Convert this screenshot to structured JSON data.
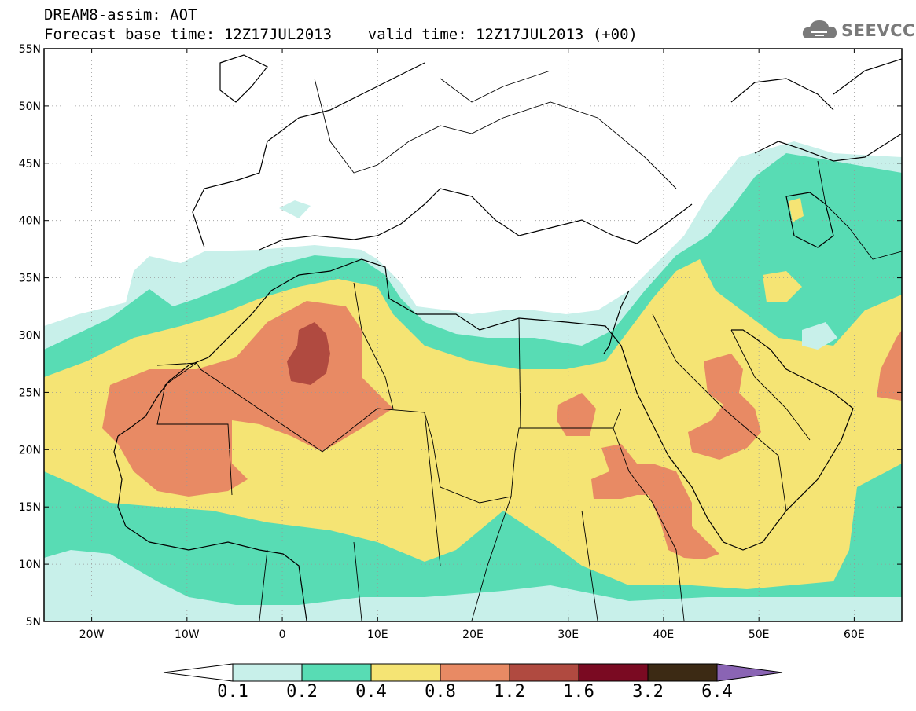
{
  "header": {
    "title_line1": "DREAM8-assim: AOT",
    "title_line2": "Forecast base time: 12Z17JUL2013    valid time: 12Z17JUL2013 (+00)",
    "logo_text": "SEEVCCC"
  },
  "map": {
    "lon_range": [
      -25,
      65
    ],
    "lat_range": [
      5,
      55
    ],
    "lon_ticks": [
      "20W",
      "10W",
      "0",
      "10E",
      "20E",
      "30E",
      "40E",
      "50E",
      "60E"
    ],
    "lat_ticks": [
      "5N",
      "10N",
      "15N",
      "20N",
      "25N",
      "30N",
      "35N",
      "40N",
      "45N",
      "50N",
      "55N"
    ],
    "variable": "AOT"
  },
  "colorbar": {
    "labels": [
      "0.1",
      "0.2",
      "0.4",
      "0.8",
      "1.2",
      "1.6",
      "3.2",
      "6.4"
    ],
    "colors": [
      "#ffffff",
      "#c8f0ea",
      "#58dcb4",
      "#f5e474",
      "#e88a64",
      "#b04a40",
      "#7a0a22",
      "#3c2a14",
      "#8a64b4"
    ]
  }
}
